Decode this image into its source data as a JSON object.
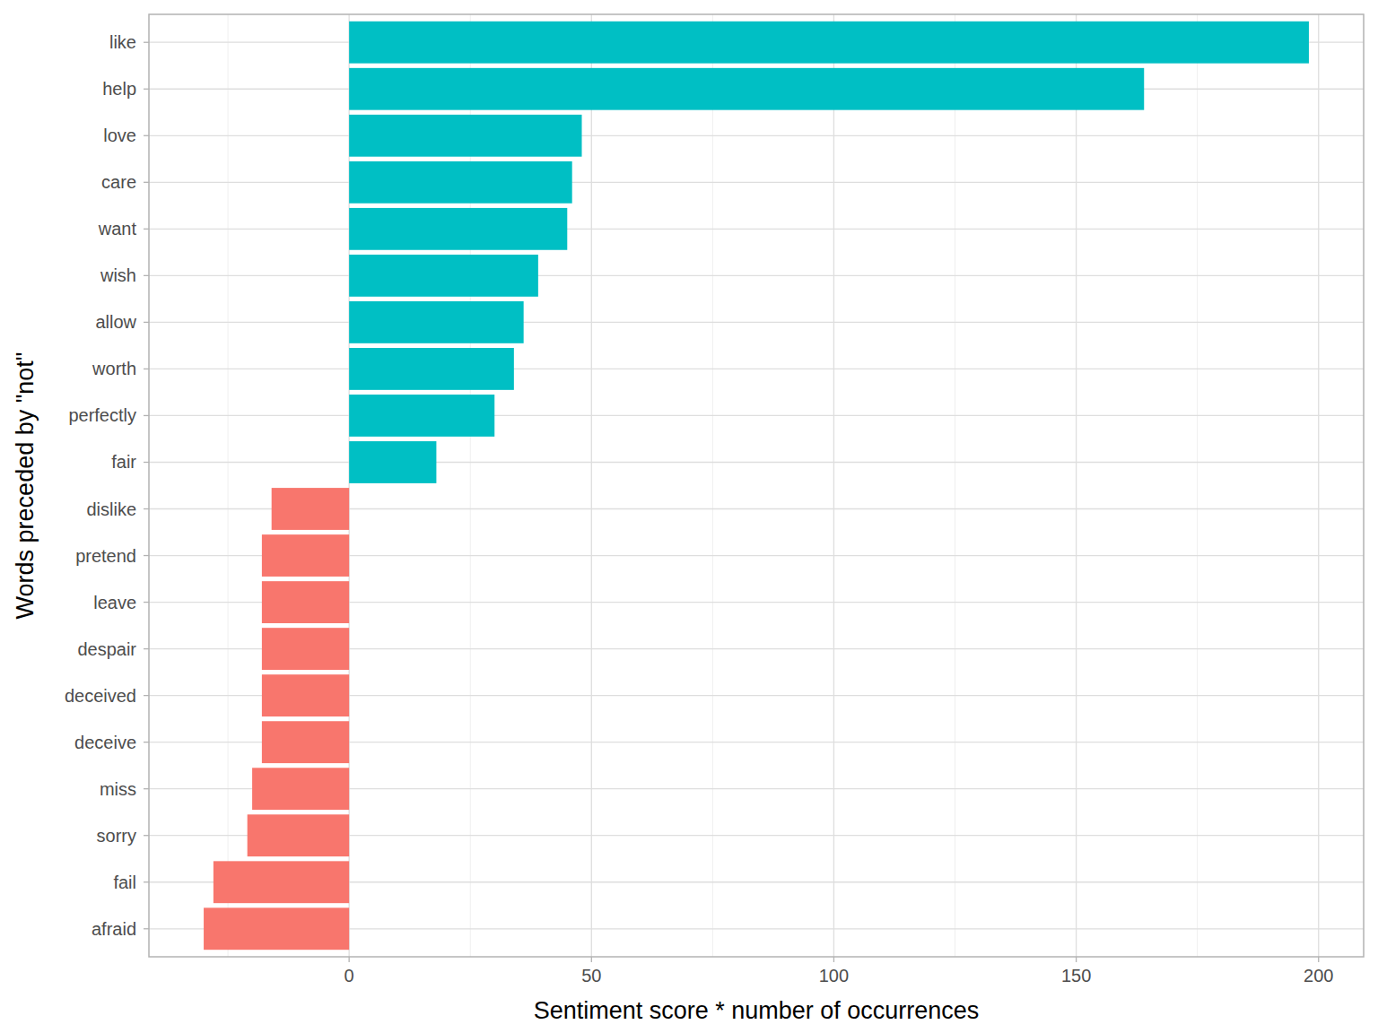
{
  "chart_data": {
    "type": "bar",
    "orientation": "horizontal",
    "x_label": "Sentiment score * number of occurrences",
    "y_label": "Words preceded by \"not\"",
    "categories": [
      "like",
      "help",
      "love",
      "care",
      "want",
      "wish",
      "allow",
      "worth",
      "perfectly",
      "fair",
      "dislike",
      "pretend",
      "leave",
      "despair",
      "deceived",
      "deceive",
      "miss",
      "sorry",
      "fail",
      "afraid"
    ],
    "values": [
      198,
      164,
      48,
      46,
      45,
      39,
      36,
      34,
      30,
      18,
      -16,
      -18,
      -18,
      -18,
      -18,
      -18,
      -20,
      -21,
      -28,
      -30
    ],
    "colors": [
      "#00BFC4",
      "#00BFC4",
      "#00BFC4",
      "#00BFC4",
      "#00BFC4",
      "#00BFC4",
      "#00BFC4",
      "#00BFC4",
      "#00BFC4",
      "#00BFC4",
      "#F8766D",
      "#F8766D",
      "#F8766D",
      "#F8766D",
      "#F8766D",
      "#F8766D",
      "#F8766D",
      "#F8766D",
      "#F8766D",
      "#F8766D"
    ],
    "xlim": [
      -41.3,
      209.3
    ],
    "xticks": [
      0,
      50,
      100,
      150,
      200
    ],
    "grid": true
  }
}
